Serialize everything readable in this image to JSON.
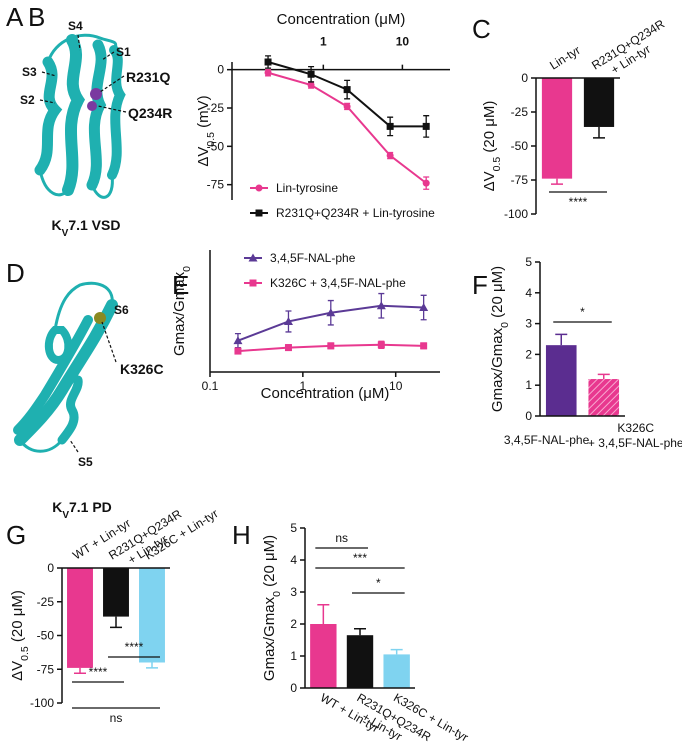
{
  "structures": [
    {
      "letter": "A",
      "labels": [
        "S4",
        "S1",
        "S3",
        "R231Q",
        "S2",
        "Q234R"
      ],
      "caption": [
        "K",
        "V",
        "7.1 VSD"
      ]
    },
    {
      "letter": "D",
      "labels": [
        "S6",
        "K326C",
        "S5"
      ],
      "caption": [
        "K",
        "V",
        "7.1 PD"
      ]
    }
  ],
  "chart_data": [
    {
      "type": "line",
      "letter": "B",
      "xlabel": [
        "Concentration (μM)"
      ],
      "ylabel": [
        "ΔV",
        "0.5",
        " (mV)"
      ],
      "xscale": "log",
      "xaxis_position": "top",
      "x": [
        0.2,
        0.7,
        2,
        7,
        20
      ],
      "xlim": [
        0.07,
        40
      ],
      "xticks": [
        1,
        10
      ],
      "ylim": [
        -85,
        5
      ],
      "yticks": [
        0,
        -25,
        -50,
        -75
      ],
      "legend": "lower right",
      "series": [
        {
          "name": "Lin-tyrosine",
          "color": "#e8388f",
          "marker": "circle",
          "values": [
            -2,
            -10,
            -24,
            -56,
            -74
          ],
          "errors": [
            2,
            2,
            2,
            2,
            4
          ]
        },
        {
          "name": "R231Q+Q234R + Lin-tyrosine",
          "color": "#111111",
          "marker": "square",
          "values": [
            5,
            -3,
            -13,
            -37,
            -37
          ],
          "errors": [
            4,
            5,
            6,
            6,
            7
          ]
        }
      ]
    },
    {
      "type": "bar",
      "letter": "C",
      "ylabel": [
        "ΔV",
        "0.5",
        " (20 μM)"
      ],
      "categories": [
        [
          "Lin-tyr"
        ],
        [
          "R231Q+Q234R",
          "+ Lin-tyr"
        ]
      ],
      "values": [
        -74,
        -36
      ],
      "errors": [
        4,
        8
      ],
      "colors": [
        "#e8388f",
        "#111111"
      ],
      "ylim": [
        -100,
        0
      ],
      "yticks": [
        0,
        -25,
        -50,
        -75,
        -100
      ],
      "significance": [
        {
          "label": "****",
          "pair": [
            0,
            1
          ]
        }
      ]
    },
    {
      "type": "line",
      "letter": "E",
      "xlabel": [
        "Concentration (μM)"
      ],
      "ylabel": [
        "Gmax/Gmax",
        "0"
      ],
      "xscale": "log",
      "xaxis_position": "bottom",
      "x": [
        0.2,
        0.7,
        2,
        7,
        20
      ],
      "xlim": [
        0.1,
        30
      ],
      "xticks": [
        0.1,
        1,
        10
      ],
      "ylim": [
        0.5,
        4
      ],
      "legend": "upper left",
      "series": [
        {
          "name": "3,4,5F-NAL-phe",
          "color": "#5b3a96",
          "marker": "triangle",
          "values": [
            1.4,
            1.95,
            2.2,
            2.4,
            2.35
          ],
          "errors": [
            0.2,
            0.3,
            0.35,
            0.35,
            0.35
          ]
        },
        {
          "name": "K326C + 3,4,5F-NAL-phe",
          "color": "#e8388f",
          "marker": "square",
          "values": [
            1.1,
            1.2,
            1.25,
            1.28,
            1.25
          ],
          "errors": [
            0.08,
            0.08,
            0.08,
            0.1,
            0.08
          ]
        }
      ]
    },
    {
      "type": "bar",
      "letter": "F",
      "ylabel": [
        "Gmax/Gmax",
        "0",
        " (20 μM)"
      ],
      "categories": [
        [
          "3,4,5F-NAL-phe"
        ],
        [
          "K326C",
          "+ 3,4,5F-NAL-phe"
        ]
      ],
      "values": [
        2.3,
        1.2
      ],
      "errors": [
        0.35,
        0.15
      ],
      "colors": [
        "#5b2d90",
        "#e8388f"
      ],
      "hatch": [
        false,
        true
      ],
      "ylim": [
        0,
        5
      ],
      "yticks": [
        0,
        1,
        2,
        3,
        4,
        5
      ],
      "significance": [
        {
          "label": "*",
          "pair": [
            0,
            1
          ]
        }
      ]
    },
    {
      "type": "bar",
      "letter": "G",
      "ylabel": [
        "ΔV",
        "0.5",
        " (20 μM)"
      ],
      "categories": [
        [
          "WT + Lin-tyr"
        ],
        [
          "R231Q+Q234R",
          "+ Lin-tyr"
        ],
        [
          "K326C + Lin-tyr"
        ]
      ],
      "values": [
        -74,
        -36,
        -70
      ],
      "errors": [
        4,
        8,
        4
      ],
      "colors": [
        "#e8388f",
        "#111111",
        "#7fd3f0"
      ],
      "ylim": [
        -100,
        0
      ],
      "yticks": [
        0,
        -25,
        -50,
        -75,
        -100
      ],
      "significance": [
        {
          "label": "****",
          "pair": [
            0,
            1
          ]
        },
        {
          "label": "****",
          "pair": [
            1,
            2
          ]
        },
        {
          "label": "ns",
          "pair": [
            0,
            2
          ]
        }
      ]
    },
    {
      "type": "bar",
      "letter": "H",
      "ylabel": [
        "Gmax/Gmax",
        "0",
        " (20 μM)"
      ],
      "categories": [
        [
          "WT + Lin-tyr"
        ],
        [
          "R231Q+Q234R",
          "+ Lin-tyr"
        ],
        [
          "K326C + Lin-tyr"
        ]
      ],
      "values": [
        2.0,
        1.65,
        1.05
      ],
      "errors": [
        0.6,
        0.2,
        0.15
      ],
      "colors": [
        "#e8388f",
        "#111111",
        "#7fd3f0"
      ],
      "ylim": [
        0,
        5
      ],
      "yticks": [
        0,
        1,
        2,
        3,
        4,
        5
      ],
      "significance": [
        {
          "label": "ns",
          "pair": [
            0,
            1
          ]
        },
        {
          "label": "***",
          "pair": [
            0,
            2
          ]
        },
        {
          "label": "*",
          "pair": [
            1,
            2
          ]
        }
      ]
    }
  ]
}
